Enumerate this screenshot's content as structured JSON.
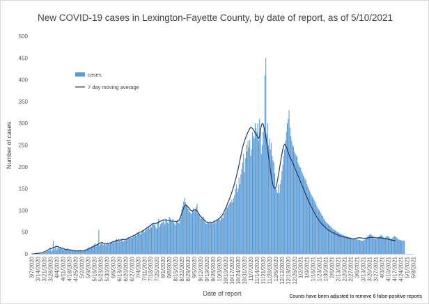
{
  "chart_data": {
    "type": "bar",
    "title": "New COVID-19 cases in Lexington-Fayette County, by date of report, as of 5/10/2021",
    "xlabel": "Date of report",
    "ylabel": "Number of cases",
    "ylim": [
      0,
      500
    ],
    "yticks": [
      0,
      50,
      100,
      150,
      200,
      250,
      300,
      350,
      400,
      450,
      500
    ],
    "grid": false,
    "legend_position": "top-left",
    "note": "Counts have been adjusted to remove 6 false-positive reports",
    "colors": {
      "bars": "#5b9bd5",
      "moving_average": "#1f3864"
    },
    "x_tick_labels": [
      "3/7/2020",
      "3/14/2020",
      "3/21/2020",
      "3/28/2020",
      "4/4/2020",
      "4/11/2020",
      "4/18/2020",
      "4/25/2020",
      "5/2/2020",
      "5/9/2020",
      "5/16/2020",
      "5/23/2020",
      "5/30/2020",
      "6/6/2020",
      "6/13/2020",
      "6/20/2020",
      "6/27/2020",
      "7/4/2020",
      "7/11/2020",
      "7/18/2020",
      "7/25/2020",
      "8/1/2020",
      "8/8/2020",
      "8/15/2020",
      "8/22/2020",
      "8/29/2020",
      "9/5/2020",
      "9/12/2020",
      "9/19/2020",
      "9/26/2020",
      "10/3/2020",
      "10/10/2020",
      "10/17/2020",
      "10/24/2020",
      "10/31/2020",
      "11/7/2020",
      "11/14/2020",
      "11/21/2020",
      "11/28/2020",
      "12/5/2020",
      "12/12/2020",
      "12/19/2020",
      "12/26/2020",
      "1/2/2021",
      "1/9/2021",
      "1/16/2021",
      "1/23/2021",
      "1/30/2021",
      "2/6/2021",
      "2/13/2021",
      "2/20/2021",
      "2/27/2021",
      "3/6/2021",
      "3/13/2021",
      "3/20/2021",
      "3/27/2021",
      "4/3/2021",
      "4/10/2021",
      "4/17/2021",
      "4/24/2021",
      "5/1/2021",
      "5/8/2021"
    ],
    "series": [
      {
        "name": "cases",
        "kind": "bar",
        "x_start": "2020-03-07",
        "interval_days": 1,
        "values": [
          0,
          0,
          1,
          0,
          0,
          0,
          1,
          0,
          2,
          1,
          0,
          1,
          2,
          3,
          2,
          5,
          4,
          6,
          8,
          7,
          10,
          12,
          6,
          9,
          30,
          10,
          14,
          20,
          8,
          14,
          18,
          12,
          16,
          13,
          14,
          10,
          12,
          12,
          8,
          11,
          13,
          10,
          9,
          10,
          9,
          8,
          7,
          9,
          8,
          6,
          8,
          7,
          6,
          9,
          8,
          9,
          7,
          5,
          8,
          9,
          11,
          10,
          13,
          12,
          15,
          16,
          13,
          17,
          18,
          20,
          22,
          25,
          18,
          20,
          22,
          55,
          19,
          22,
          24,
          23,
          21,
          25,
          22,
          20,
          23,
          26,
          24,
          22,
          25,
          27,
          28,
          25,
          30,
          28,
          32,
          35,
          29,
          33,
          30,
          27,
          32,
          35,
          28,
          30,
          33,
          31,
          34,
          36,
          38,
          34,
          37,
          40,
          36,
          39,
          42,
          40,
          44,
          41,
          46,
          48,
          50,
          47,
          45,
          49,
          52,
          55,
          50,
          53,
          58,
          56,
          60,
          62,
          58,
          65,
          61,
          68,
          70,
          66,
          72,
          60,
          58,
          74,
          80,
          62,
          68,
          70,
          72,
          78,
          74,
          68,
          80,
          76,
          72,
          70,
          85,
          82,
          76,
          74,
          80,
          72,
          70,
          66,
          75,
          78,
          72,
          70,
          78,
          84,
          102,
          110,
          120,
          128,
          118,
          112,
          108,
          104,
          100,
          96,
          94,
          92,
          100,
          105,
          98,
          102,
          108,
          115,
          96,
          90,
          88,
          82,
          80,
          84,
          86,
          76,
          72,
          70,
          68,
          74,
          72,
          70,
          75,
          72,
          68,
          74,
          70,
          78,
          72,
          80,
          76,
          82,
          80,
          76,
          86,
          84,
          82,
          92,
          95,
          100,
          110,
          106,
          112,
          115,
          120,
          118,
          125,
          118,
          128,
          135,
          150,
          160,
          142,
          150,
          175,
          160,
          182,
          195,
          210,
          230,
          188,
          220,
          250,
          235,
          260,
          245,
          262,
          225,
          240,
          280,
          270,
          265,
          300,
          290,
          280,
          300,
          260,
          310,
          285,
          230,
          250,
          280,
          290,
          410,
          450,
          275,
          300,
          250,
          265,
          240,
          255,
          225,
          215,
          210,
          185,
          150,
          148,
          140,
          160,
          140,
          160,
          170,
          190,
          205,
          225,
          240,
          260,
          280,
          300,
          310,
          330,
          290,
          270,
          260,
          250,
          246,
          235,
          230,
          226,
          222,
          210,
          205,
          200,
          198,
          190,
          185,
          180,
          176,
          172,
          168,
          160,
          155,
          150,
          145,
          140,
          136,
          132,
          128,
          124,
          120,
          115,
          110,
          106,
          102,
          100,
          96,
          92,
          88,
          86,
          80,
          78,
          74,
          72,
          70,
          68,
          66,
          64,
          62,
          60,
          58,
          56,
          55,
          54,
          52,
          50,
          50,
          48,
          47,
          46,
          45,
          44,
          43,
          42,
          41,
          40,
          40,
          39,
          38,
          38,
          37,
          36,
          36,
          35,
          35,
          34,
          34,
          33,
          33,
          32,
          32,
          31,
          31,
          30,
          30,
          32,
          34,
          36,
          38,
          40,
          42,
          44,
          46,
          44,
          42,
          40,
          38,
          36,
          34,
          35,
          36,
          38,
          40,
          42,
          44,
          42,
          40,
          38,
          36,
          38,
          40,
          42,
          40,
          38,
          36,
          34,
          35,
          37,
          39,
          41,
          40,
          38,
          36,
          34,
          33,
          32,
          32,
          31,
          31,
          30,
          30
        ]
      },
      {
        "name": "7 day moving average",
        "kind": "line",
        "x_start": "2020-03-07",
        "interval_days": 1,
        "values": [
          0,
          0,
          0,
          0,
          1,
          1,
          1,
          1,
          2,
          2,
          2,
          2,
          3,
          4,
          5,
          5,
          7,
          8,
          9,
          10,
          12,
          13,
          12,
          13,
          15,
          15,
          16,
          17,
          17,
          17,
          16,
          15,
          14,
          14,
          13,
          13,
          12,
          11,
          10,
          10,
          10,
          10,
          9,
          9,
          9,
          8,
          8,
          8,
          7,
          7,
          7,
          7,
          7,
          7,
          7,
          7,
          7,
          7,
          7,
          7,
          8,
          9,
          10,
          11,
          12,
          13,
          14,
          15,
          16,
          17,
          18,
          19,
          20,
          21,
          22,
          24,
          25,
          25,
          26,
          26,
          24,
          24,
          24,
          23,
          23,
          24,
          24,
          25,
          25,
          26,
          27,
          28,
          29,
          29,
          30,
          31,
          31,
          32,
          32,
          32,
          32,
          33,
          33,
          33,
          33,
          33,
          34,
          35,
          36,
          37,
          38,
          39,
          40,
          41,
          42,
          43,
          44,
          45,
          47,
          48,
          49,
          50,
          50,
          51,
          53,
          54,
          55,
          57,
          58,
          60,
          61,
          63,
          64,
          66,
          67,
          69,
          70,
          70,
          70,
          70,
          71,
          72,
          73,
          74,
          75,
          76,
          77,
          78,
          78,
          78,
          78,
          78,
          77,
          77,
          77,
          76,
          76,
          75,
          75,
          75,
          75,
          74,
          74,
          75,
          76,
          78,
          82,
          88,
          94,
          100,
          106,
          110,
          112,
          112,
          110,
          108,
          105,
          102,
          100,
          99,
          99,
          100,
          101,
          102,
          101,
          99,
          96,
          92,
          89,
          86,
          84,
          82,
          80,
          78,
          76,
          74,
          73,
          72,
          72,
          72,
          72,
          72,
          72,
          73,
          74,
          75,
          76,
          77,
          78,
          80,
          82,
          84,
          86,
          88,
          92,
          96,
          100,
          105,
          110,
          115,
          120,
          125,
          130,
          136,
          142,
          148,
          155,
          162,
          170,
          178,
          186,
          195,
          205,
          215,
          225,
          235,
          245,
          252,
          258,
          265,
          270,
          275,
          280,
          284,
          288,
          290,
          290,
          288,
          286,
          282,
          278,
          275,
          272,
          268,
          265,
          270,
          285,
          295,
          300,
          298,
          290,
          280,
          268,
          255,
          240,
          225,
          210,
          195,
          180,
          168,
          158,
          152,
          150,
          152,
          158,
          168,
          180,
          192,
          205,
          218,
          230,
          240,
          248,
          252,
          250,
          246,
          240,
          234,
          228,
          222,
          218,
          214,
          210,
          205,
          200,
          195,
          190,
          185,
          180,
          175,
          170,
          165,
          160,
          155,
          150,
          145,
          140,
          135,
          130,
          125,
          120,
          116,
          112,
          108,
          104,
          100,
          96,
          92,
          88,
          85,
          82,
          79,
          76,
          73,
          70,
          68,
          66,
          64,
          62,
          60,
          58,
          56,
          55,
          54,
          52,
          51,
          50,
          49,
          48,
          47,
          46,
          45,
          44,
          43,
          42,
          41,
          41,
          40,
          40,
          39,
          39,
          38,
          38,
          37,
          37,
          36,
          36,
          36,
          35,
          35,
          35,
          35,
          35,
          36,
          36,
          37,
          37,
          37,
          37,
          37,
          36,
          36,
          36,
          36,
          36,
          36,
          37,
          37,
          37,
          38,
          38,
          38,
          38,
          38,
          38,
          37,
          37,
          37,
          37,
          37,
          37,
          37,
          36,
          36,
          36,
          35,
          35,
          35,
          34,
          34,
          33,
          33,
          32,
          32,
          31,
          31,
          31,
          30
        ]
      }
    ]
  }
}
